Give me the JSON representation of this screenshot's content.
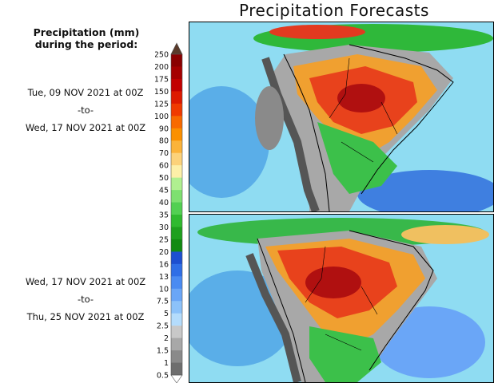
{
  "title": "Precipitation Forecasts",
  "heading": [
    "Precipitation (mm)",
    "during the period:"
  ],
  "periods": [
    {
      "start": "Tue, 09 NOV 2021 at 00Z",
      "sep": "-to-",
      "end": "Wed, 17 NOV 2021 at 00Z"
    },
    {
      "start": "Wed, 17 NOV 2021 at 00Z",
      "sep": "-to-",
      "end": "Thu, 25 NOV 2021 at 00Z"
    }
  ],
  "legend": {
    "labels": [
      "250",
      "200",
      "175",
      "150",
      "125",
      "100",
      "90",
      "80",
      "70",
      "60",
      "50",
      "45",
      "40",
      "35",
      "30",
      "25",
      "20",
      "16",
      "13",
      "10",
      "7.5",
      "5",
      "2.5",
      "2",
      "1.5",
      "1",
      "0.5"
    ],
    "colors": [
      "#8a0000",
      "#a50000",
      "#c20000",
      "#dd1a00",
      "#f03a00",
      "#f86a00",
      "#fb9000",
      "#fbb33a",
      "#fcd27a",
      "#fdf0a8",
      "#b0f090",
      "#7ee070",
      "#52d052",
      "#2fba2f",
      "#1ea01e",
      "#118a11",
      "#1d4fd0",
      "#2f6ee6",
      "#4a8bf2",
      "#6aa6f7",
      "#8cc2fa",
      "#b4dcfc",
      "#c8c8c8",
      "#a8a8a8",
      "#8a8a8a",
      "#6e6e6e",
      "#ffffff"
    ],
    "top_arrow_color": "#5a3a2a"
  }
}
